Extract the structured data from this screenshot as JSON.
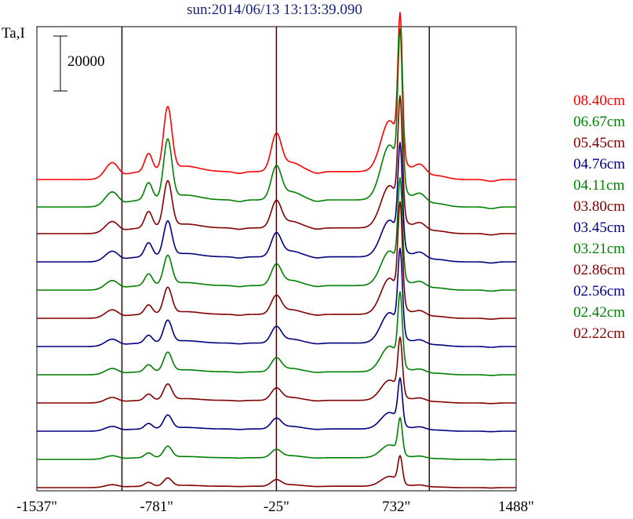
{
  "chart_data": {
    "type": "line",
    "title": "sun:2014/06/13 13:13:39.090",
    "ylabel": "Ta,I",
    "scale_bar_label": "20000",
    "xticks": [
      "-1537\"",
      "-781\"",
      "-25\"",
      "732\"",
      "1488\""
    ],
    "xlim": [
      -1537,
      1488
    ],
    "vlines": [
      -1000,
      -25,
      940
    ],
    "colors": {
      "red": "#ff0000",
      "green": "#008000",
      "maroon": "#800000",
      "navy": "#000080"
    },
    "series": [
      {
        "name": "08.40cm",
        "color": "#ff0000",
        "base_y": 229,
        "h1": 23,
        "h2": 80,
        "hl": 46,
        "hp": 171
      },
      {
        "name": "06.67cm",
        "color": "#008000",
        "base_y": 264,
        "h1": 22,
        "h2": 75,
        "hl": 41,
        "hp": 184
      },
      {
        "name": "05.45cm",
        "color": "#800000",
        "base_y": 298,
        "h1": 21,
        "h2": 58,
        "hl": 33,
        "hp": 142
      },
      {
        "name": "04.76cm",
        "color": "#000080",
        "base_y": 334,
        "h1": 18,
        "h2": 44,
        "hl": 29,
        "hp": 123
      },
      {
        "name": "04.11cm",
        "color": "#008000",
        "base_y": 370,
        "h1": 15,
        "h2": 37,
        "hl": 26,
        "hp": 116
      },
      {
        "name": "03.80cm",
        "color": "#800000",
        "base_y": 406,
        "h1": 12,
        "h2": 33,
        "hl": 23,
        "hp": 121
      },
      {
        "name": "03.45cm",
        "color": "#000080",
        "base_y": 442,
        "h1": 10,
        "h2": 28,
        "hl": 20,
        "hp": 102
      },
      {
        "name": "03.21cm",
        "color": "#008000",
        "base_y": 478,
        "h1": 9,
        "h2": 24,
        "hl": 17,
        "hp": 86
      },
      {
        "name": "02.86cm",
        "color": "#800000",
        "base_y": 514,
        "h1": 8,
        "h2": 20,
        "hl": 15,
        "hp": 68
      },
      {
        "name": "02.56cm",
        "color": "#000080",
        "base_y": 550,
        "h1": 7,
        "h2": 17,
        "hl": 13,
        "hp": 55
      },
      {
        "name": "02.42cm",
        "color": "#008000",
        "base_y": 586,
        "h1": 6,
        "h2": 14,
        "hl": 10,
        "hp": 43
      },
      {
        "name": "02.22cm",
        "color": "#800000",
        "base_y": 622,
        "h1": 5,
        "h2": 10,
        "hl": 8,
        "hp": 33
      }
    ]
  }
}
